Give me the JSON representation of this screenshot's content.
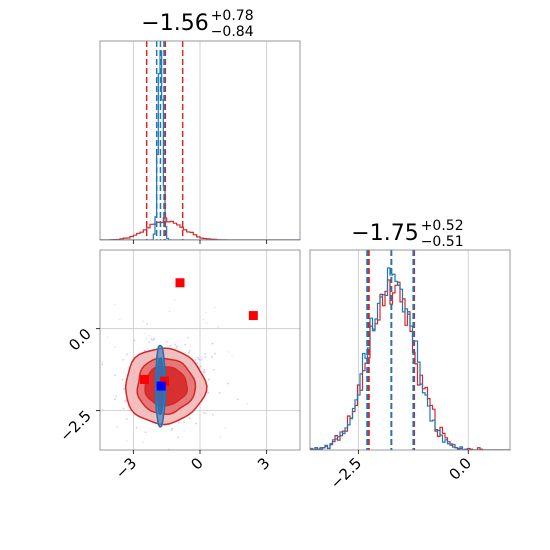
{
  "colors": {
    "red": "#d62728",
    "blue": "#1f77b4",
    "marker_red": "#ff0000",
    "marker_blue": "#0000ff"
  },
  "chart_data": [
    {
      "type": "histogram",
      "panel": "marginal-param-1",
      "title": {
        "median": "−1.56",
        "plus": "+0.78",
        "minus": "−0.84"
      },
      "xlim": [
        -4.5,
        4.5
      ],
      "x_ticks": [
        -3,
        0,
        3
      ],
      "series": [
        {
          "color": "red",
          "quantiles": [
            -2.4,
            -1.56,
            -0.78
          ]
        },
        {
          "color": "blue",
          "quantiles": [
            -1.95,
            -1.78,
            -1.62
          ]
        }
      ]
    },
    {
      "type": "histogram",
      "panel": "marginal-param-2",
      "title": {
        "median": "−1.75",
        "plus": "+0.52",
        "minus": "−0.51"
      },
      "xlim": [
        -3.6,
        0.95
      ],
      "x_ticks": [
        -2.5,
        0.0
      ],
      "x_tick_labels": [
        "−2.5",
        "0.0"
      ],
      "series": [
        {
          "color": "red",
          "quantiles": [
            -2.26,
            -1.75,
            -1.23
          ]
        },
        {
          "color": "blue",
          "quantiles": [
            -2.3,
            -1.75,
            -1.25
          ]
        }
      ]
    },
    {
      "type": "scatter",
      "panel": "joint-2d",
      "xlim": [
        -4.5,
        4.5
      ],
      "ylim": [
        -3.7,
        2.4
      ],
      "x_ticks": [
        -3,
        0,
        3
      ],
      "x_tick_labels": [
        "−3",
        "0",
        "3"
      ],
      "y_ticks": [
        0.0,
        -2.5
      ],
      "y_tick_labels": [
        "0.0",
        "−2.5"
      ],
      "red_contours": [
        {
          "cx": -1.6,
          "cy": -1.75,
          "rx": 1.8,
          "ry": 1.15
        },
        {
          "cx": -1.55,
          "cy": -1.75,
          "rx": 1.3,
          "ry": 0.85
        },
        {
          "cx": -1.55,
          "cy": -1.75,
          "rx": 0.95,
          "ry": 0.6
        }
      ],
      "blue_contours": [
        {
          "cx": -1.78,
          "cy": -1.75,
          "rx": 0.22,
          "ry": 1.25
        },
        {
          "cx": -1.78,
          "cy": -1.75,
          "rx": 0.14,
          "ry": 0.85
        }
      ],
      "red_points": [
        {
          "x": -0.9,
          "y": 1.4
        },
        {
          "x": 2.4,
          "y": 0.4
        },
        {
          "x": -2.5,
          "y": -1.55
        },
        {
          "x": -1.6,
          "y": -1.6
        }
      ],
      "blue_points": [
        {
          "x": -1.75,
          "y": -1.75
        }
      ]
    }
  ]
}
